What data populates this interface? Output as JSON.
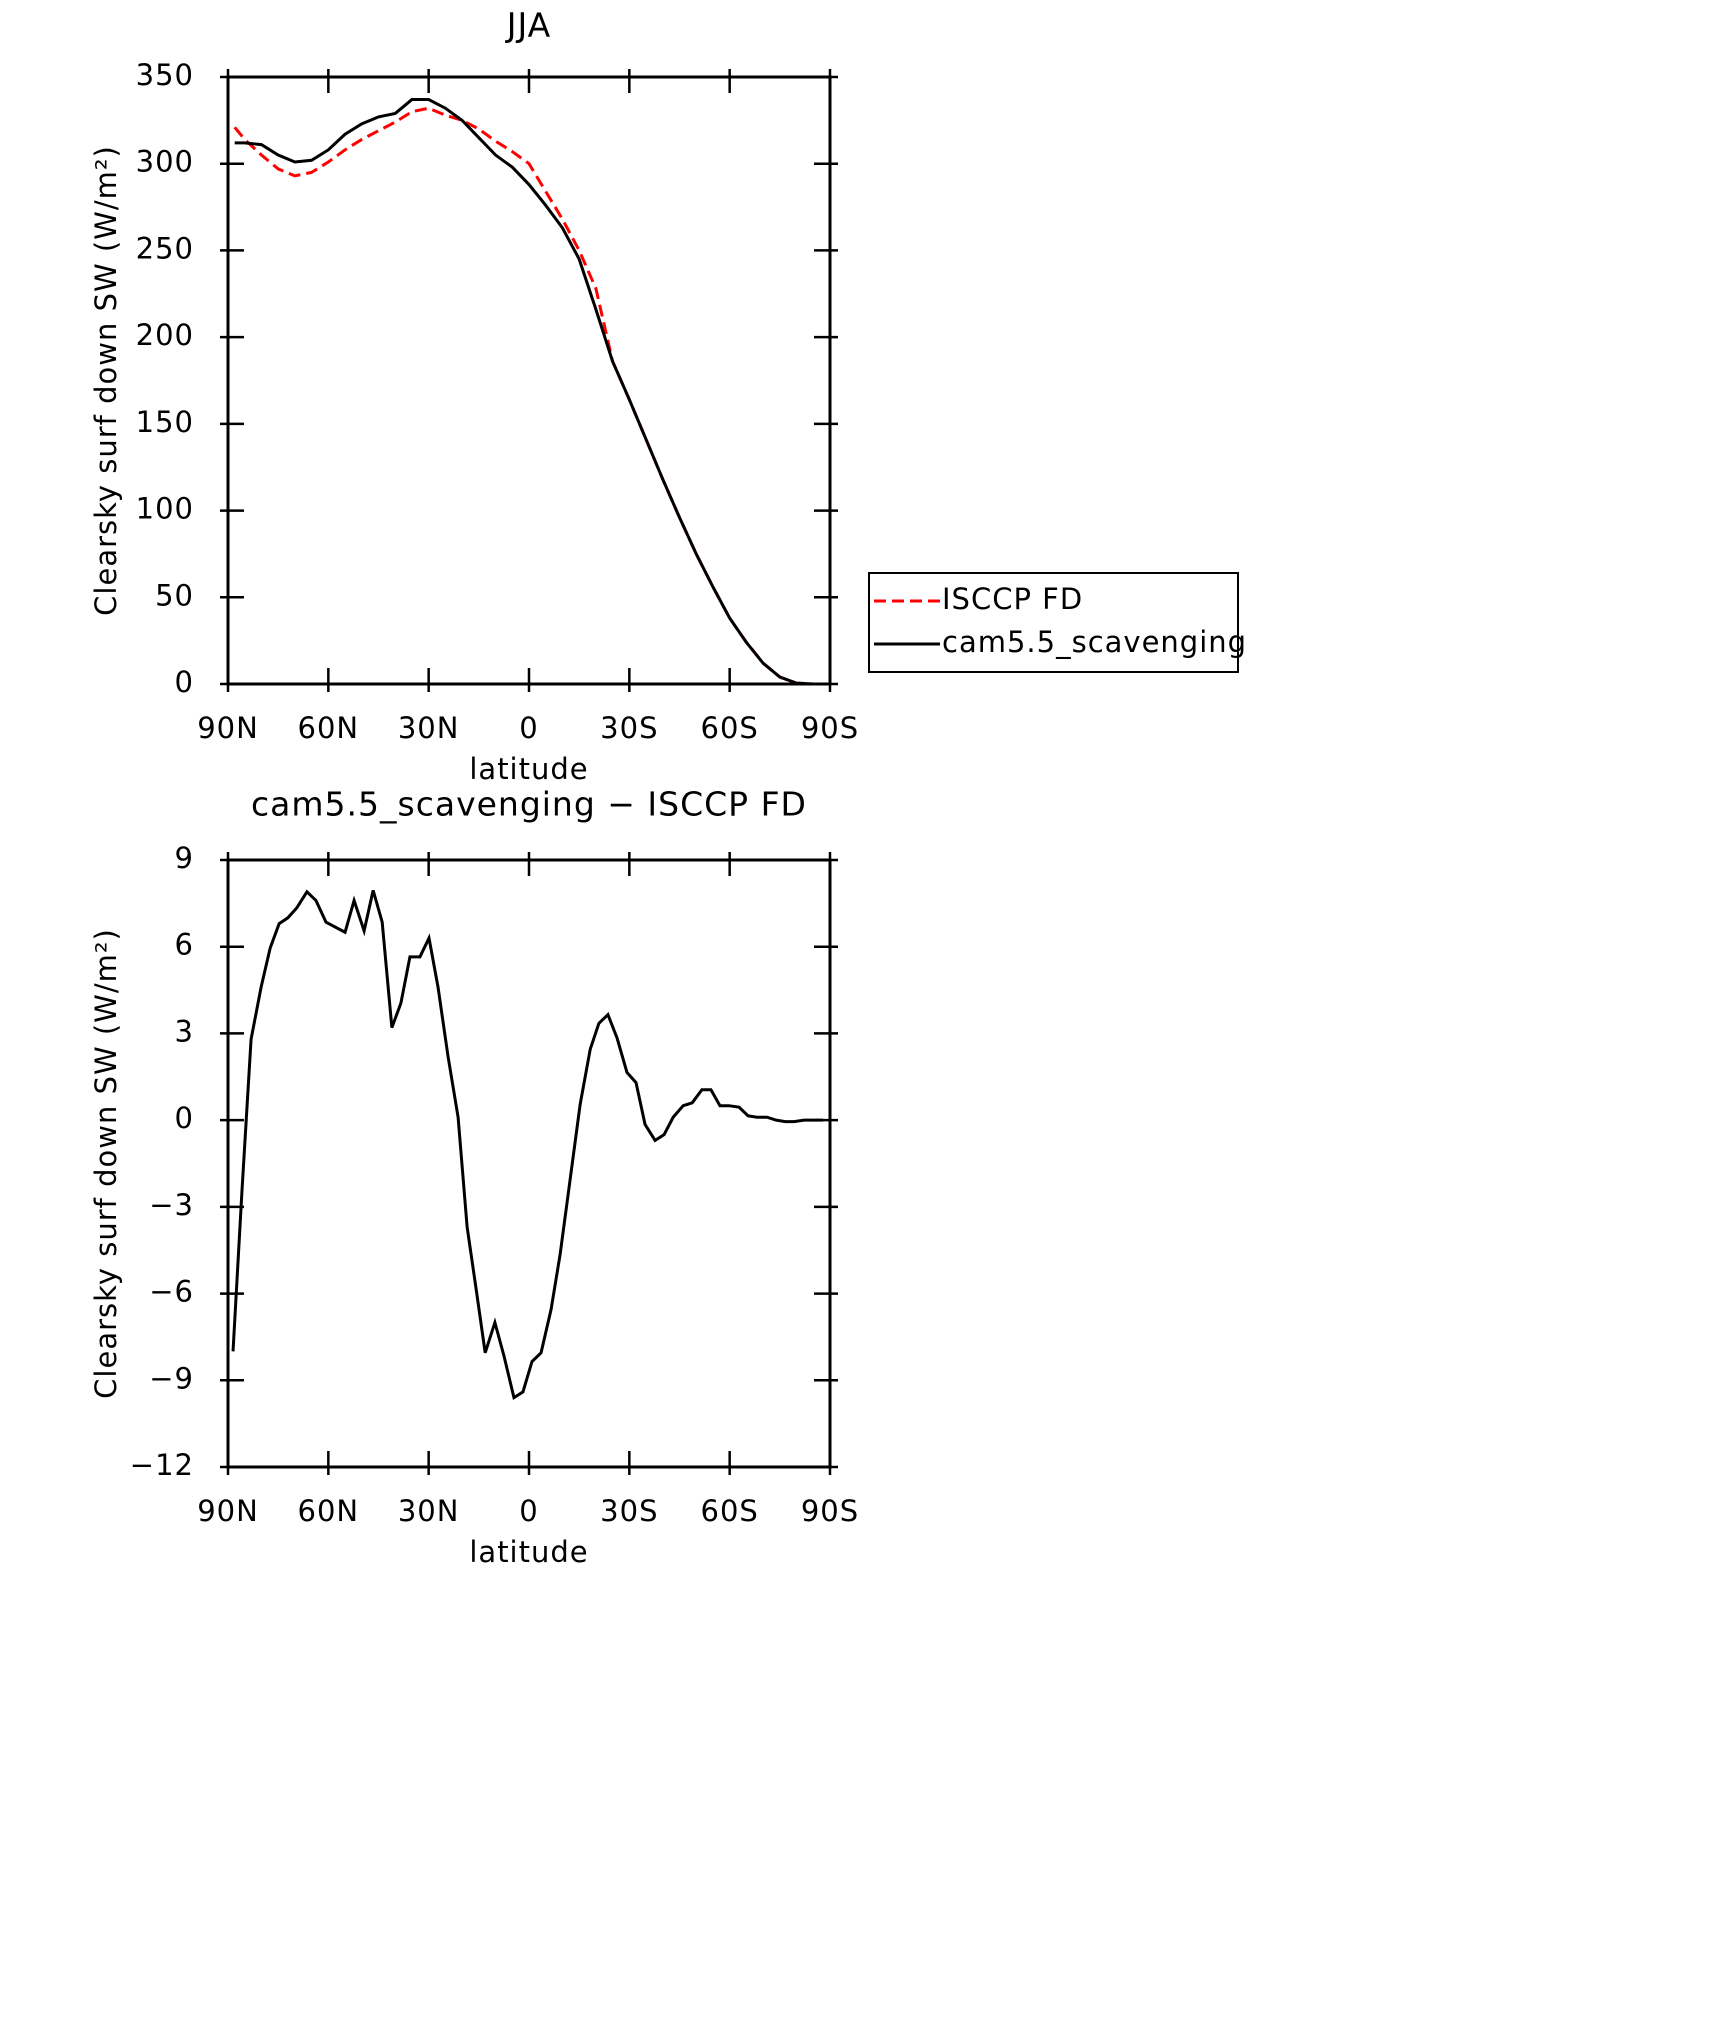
{
  "chart_data": [
    {
      "type": "line",
      "title": "JJA",
      "xlabel": "latitude",
      "ylabel": "Clearsky surf down SW (W/m²)",
      "x": [
        88,
        85,
        80,
        75,
        70,
        65,
        60,
        55,
        50,
        45,
        40,
        35,
        30,
        25,
        20,
        15,
        10,
        5,
        0,
        -5,
        -10,
        -15,
        -20,
        -25,
        -30,
        -35,
        -40,
        -45,
        -50,
        -55,
        -60,
        -65,
        -70,
        -75,
        -80,
        -85,
        -88
      ],
      "series": [
        {
          "name": "ISCCP FD",
          "color": "#ff0000",
          "style": "dashed",
          "values": [
            321,
            314,
            305,
            297,
            293,
            295,
            301,
            308,
            314,
            319,
            324,
            330,
            332,
            328,
            325,
            320,
            313,
            307,
            300,
            284,
            268,
            250,
            228,
            186,
            164,
            141,
            118,
            96,
            75,
            56,
            38,
            24,
            12,
            4,
            0.5,
            0,
            0
          ]
        },
        {
          "name": "cam5.5_scavenging",
          "color": "#000000",
          "style": "solid",
          "values": [
            312,
            312,
            311,
            305,
            301,
            302,
            308,
            317,
            323,
            327,
            329,
            337,
            337,
            332,
            325,
            315,
            305,
            298,
            288,
            276,
            263,
            245,
            216,
            186,
            164,
            141,
            118,
            96,
            75,
            56,
            38,
            24,
            12,
            4,
            0.5,
            0,
            0
          ]
        }
      ],
      "xlim": [
        90,
        -90
      ],
      "xticks": [
        {
          "value": 90,
          "label": "90N"
        },
        {
          "value": 60,
          "label": "60N"
        },
        {
          "value": 30,
          "label": "30N"
        },
        0,
        {
          "value": -30,
          "label": "30S"
        },
        {
          "value": -60,
          "label": "60S"
        },
        {
          "value": -90,
          "label": "90S"
        }
      ],
      "ylim": [
        0,
        350
      ],
      "yticks": [
        0,
        50,
        100,
        150,
        200,
        250,
        300,
        350
      ],
      "legend": "right"
    },
    {
      "type": "line",
      "title": "cam5.5_scavenging − ISCCP FD",
      "xlabel": "latitude",
      "ylabel": "Clearsky surf down SW (W/m²)",
      "x": [
        88.5,
        85.8,
        83.1,
        80.1,
        77.4,
        74.7,
        72.1,
        69.4,
        66.4,
        63.7,
        60.7,
        55.0,
        52.3,
        49.3,
        46.6,
        43.9,
        41.0,
        38.3,
        35.6,
        32.6,
        29.9,
        27.2,
        24.2,
        21.2,
        18.5,
        15.8,
        13.1,
        10.2,
        7.5,
        4.5,
        1.8,
        -0.9,
        -3.6,
        -6.6,
        -9.3,
        -12.3,
        -15.3,
        -18.3,
        -20.9,
        -23.6,
        -26.3,
        -29.3,
        -32.0,
        -34.7,
        -37.7,
        -40.4,
        -43.1,
        -46.1,
        -48.8,
        -51.7,
        -54.4,
        -57.1,
        -59.8,
        -62.8,
        -65.5,
        -68.2,
        -71.2,
        -73.9,
        -76.6,
        -79.3,
        -82.2,
        -84.9,
        -87.9
      ],
      "series": [
        {
          "color": "#000000",
          "style": "solid",
          "values": [
            -8.0,
            -2.4,
            2.8,
            4.6,
            5.95,
            6.8,
            7.0,
            7.35,
            7.9,
            7.6,
            6.85,
            6.5,
            7.6,
            6.55,
            7.95,
            6.85,
            3.2,
            4.05,
            5.65,
            5.65,
            6.3,
            4.6,
            2.2,
            0.1,
            -3.7,
            -5.85,
            -8.05,
            -7.0,
            -8.15,
            -9.6,
            -9.4,
            -8.35,
            -8.05,
            -6.55,
            -4.65,
            -2.05,
            0.55,
            2.45,
            3.35,
            3.65,
            2.85,
            1.65,
            1.3,
            -0.15,
            -0.7,
            -0.5,
            0.1,
            0.5,
            0.6,
            1.05,
            1.05,
            0.5,
            0.5,
            0.45,
            0.15,
            0.1,
            0.1,
            0,
            -0.05,
            -0.05,
            0,
            0,
            0
          ]
        }
      ],
      "xlim": [
        90,
        -90
      ],
      "xticks": [
        {
          "value": 90,
          "label": "90N"
        },
        {
          "value": 60,
          "label": "60N"
        },
        {
          "value": 30,
          "label": "30N"
        },
        0,
        {
          "value": -30,
          "label": "30S"
        },
        {
          "value": -60,
          "label": "60S"
        },
        {
          "value": -90,
          "label": "90S"
        }
      ],
      "ylim": [
        -12,
        9
      ],
      "yticks": [
        {
          "value": -12,
          "label": "−12"
        },
        {
          "value": -9,
          "label": "−9"
        },
        {
          "value": -6,
          "label": "−6"
        },
        {
          "value": -3,
          "label": "−3"
        },
        0,
        3,
        6,
        9
      ]
    }
  ]
}
